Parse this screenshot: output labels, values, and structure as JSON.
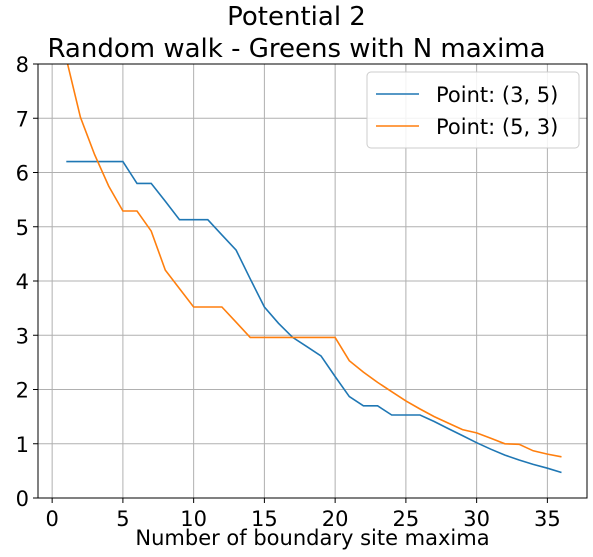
{
  "chart_data": {
    "type": "line",
    "title_lines": [
      "Potential 2",
      "Random walk - Greens with N maxima"
    ],
    "xlabel": "Number of boundary site maxima",
    "ylabel": "",
    "xlim": [
      -1,
      37.8
    ],
    "ylim": [
      0,
      8
    ],
    "xticks": [
      0,
      5,
      10,
      15,
      20,
      25,
      30,
      35
    ],
    "yticks": [
      0,
      1,
      2,
      3,
      4,
      5,
      6,
      7,
      8
    ],
    "grid": true,
    "legend_position": "top-right",
    "series": [
      {
        "name": "Point: (3, 5)",
        "color": "#1f77b4",
        "x": [
          1,
          2,
          3,
          4,
          5,
          6,
          7,
          8,
          9,
          10,
          11,
          12,
          13,
          14,
          15,
          16,
          17,
          18,
          19,
          20,
          21,
          22,
          23,
          24,
          25,
          26,
          27,
          28,
          29,
          30,
          31,
          32,
          33,
          34,
          35,
          36
        ],
        "y": [
          6.2,
          6.2,
          6.2,
          6.2,
          6.2,
          5.8,
          5.8,
          5.47,
          5.13,
          5.13,
          5.13,
          4.85,
          4.57,
          4.04,
          3.52,
          3.22,
          2.96,
          2.79,
          2.62,
          2.24,
          1.87,
          1.7,
          1.7,
          1.53,
          1.53,
          1.53,
          1.41,
          1.28,
          1.15,
          1.02,
          0.9,
          0.79,
          0.7,
          0.62,
          0.55,
          0.47
        ]
      },
      {
        "name": "Point: (5, 3)",
        "color": "#ff7f0e",
        "x": [
          1,
          2,
          3,
          4,
          5,
          6,
          7,
          8,
          9,
          10,
          11,
          12,
          13,
          14,
          15,
          16,
          17,
          18,
          19,
          20,
          21,
          22,
          23,
          24,
          25,
          26,
          27,
          28,
          29,
          30,
          31,
          32,
          33,
          34,
          35,
          36
        ],
        "y": [
          8.1,
          7.02,
          6.33,
          5.75,
          5.29,
          5.29,
          4.92,
          4.2,
          3.86,
          3.52,
          3.52,
          3.52,
          3.24,
          2.96,
          2.96,
          2.96,
          2.96,
          2.96,
          2.96,
          2.96,
          2.53,
          2.32,
          2.13,
          1.96,
          1.79,
          1.64,
          1.5,
          1.38,
          1.26,
          1.2,
          1.1,
          1.0,
          0.99,
          0.87,
          0.81,
          0.76
        ]
      }
    ]
  }
}
